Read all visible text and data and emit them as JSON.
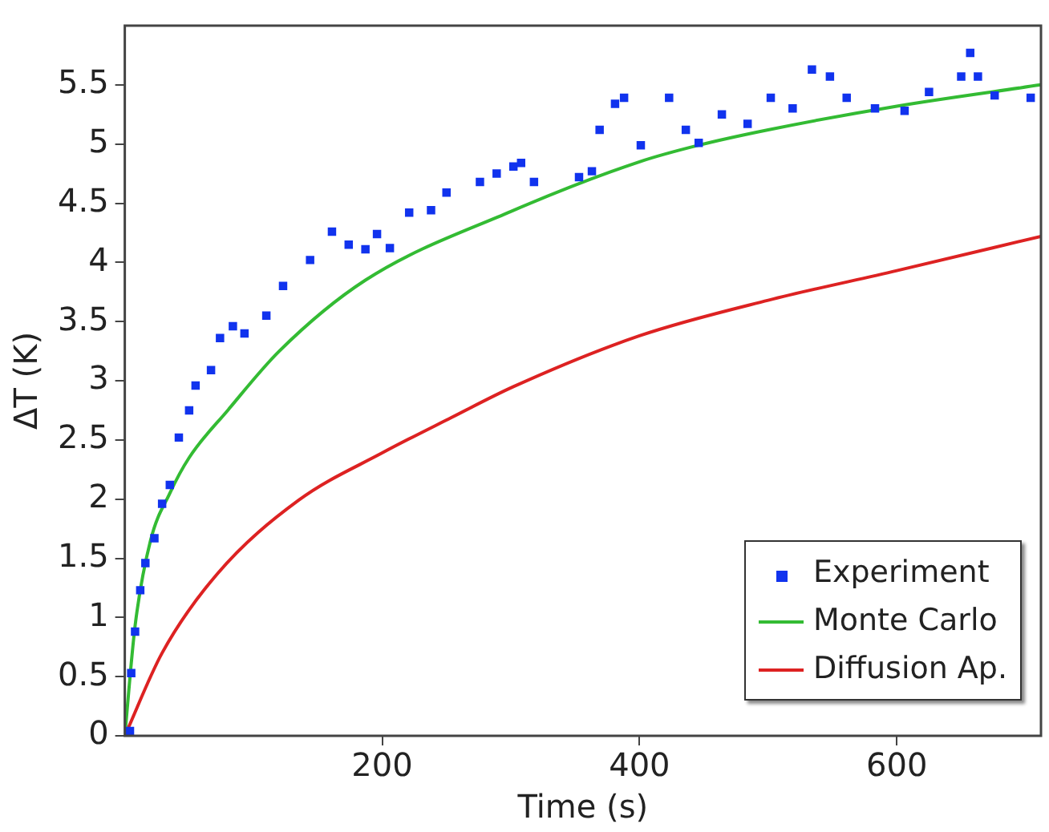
{
  "chart_data": {
    "type": "scatter",
    "xlabel": "Time (s)",
    "ylabel": "ΔT (K)",
    "xlim": [
      0,
      712
    ],
    "xticks": [
      200,
      400,
      600
    ],
    "ylim": [
      0,
      6
    ],
    "yticks": [
      0,
      0.5,
      1,
      1.5,
      2,
      2.5,
      3,
      3.5,
      4,
      4.5,
      5,
      5.5
    ],
    "grid": false,
    "legend": "bottom right",
    "marker": "square",
    "series": [
      {
        "name": "Experiment",
        "color": "#1133ee",
        "x": [
          4,
          5,
          8,
          12,
          16,
          23,
          29,
          35,
          42,
          50,
          55,
          67,
          74,
          84,
          93,
          110,
          123,
          144,
          161,
          174,
          187,
          196,
          206,
          221,
          238,
          250,
          276,
          289,
          302,
          308,
          318,
          353,
          363,
          369,
          381,
          388,
          401,
          423,
          436,
          446,
          464,
          484,
          502,
          519,
          534,
          548,
          561,
          583,
          606,
          625,
          650,
          657,
          663,
          676,
          704
        ],
        "values": [
          0.04,
          0.53,
          0.88,
          1.23,
          1.46,
          1.67,
          1.96,
          2.12,
          2.52,
          2.75,
          2.96,
          3.09,
          3.36,
          3.46,
          3.4,
          3.55,
          3.8,
          4.02,
          4.26,
          4.15,
          4.11,
          4.24,
          4.12,
          4.42,
          4.44,
          4.59,
          4.68,
          4.75,
          4.81,
          4.84,
          4.68,
          4.72,
          4.77,
          5.12,
          5.34,
          5.39,
          4.99,
          5.39,
          5.12,
          5.01,
          5.25,
          5.17,
          5.39,
          5.3,
          5.63,
          5.57,
          5.39,
          5.3,
          5.28,
          5.44,
          5.57,
          5.77,
          5.57,
          5.41,
          5.39
        ]
      },
      {
        "name": "Monte Carlo",
        "type": "line",
        "color": "#33bb33",
        "marker": "none",
        "x": [
          0,
          8,
          20,
          35,
          50,
          80,
          120,
          187,
          300,
          400,
          446,
          500,
          600,
          712
        ],
        "values": [
          0,
          0.93,
          1.65,
          2.05,
          2.35,
          2.75,
          3.25,
          3.85,
          4.43,
          4.85,
          4.99,
          5.12,
          5.32,
          5.5
        ]
      },
      {
        "name": "Diffusion Ap.",
        "type": "line",
        "color": "#dd2222",
        "marker": "none",
        "x": [
          0,
          29,
          72,
          135,
          200,
          254,
          302,
          400,
          500,
          600,
          712
        ],
        "values": [
          0,
          0.7,
          1.37,
          1.99,
          2.39,
          2.69,
          2.95,
          3.38,
          3.68,
          3.93,
          4.22
        ]
      }
    ]
  }
}
